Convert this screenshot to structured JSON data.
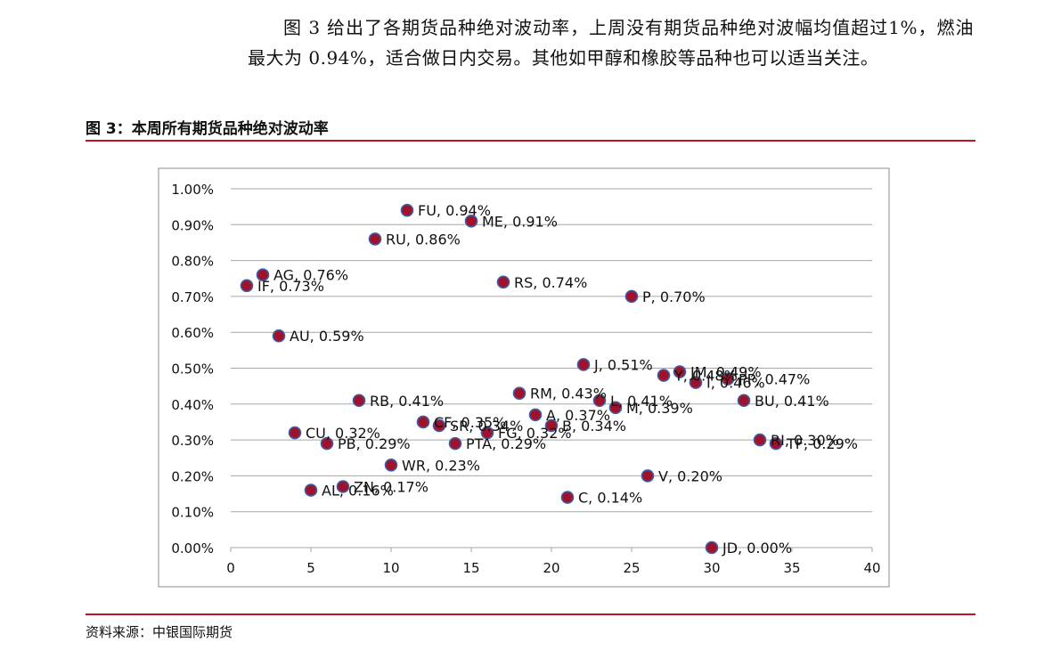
{
  "paragraph": "图 3 给出了各期货品种绝对波动率，上周没有期货品种绝对波幅均值超过1%，燃油最大为 0.94%，适合做日内交易。其他如甲醇和橡胶等品种也可以适当关注。",
  "figure_title": "图 3：本周所有期货品种绝对波动率",
  "source": "资料来源：中银国际期货",
  "colors": {
    "rule": "#c0142d",
    "marker_fill": "#a0112a",
    "marker_stroke": "#3d5fa8",
    "grid": "#a6a6a6"
  },
  "chart_data": {
    "type": "scatter",
    "title": "",
    "xlabel": "",
    "ylabel": "",
    "xlim": [
      0,
      40
    ],
    "ylim": [
      0,
      0.01
    ],
    "x_ticks": [
      0,
      5,
      10,
      15,
      20,
      25,
      30,
      35,
      40
    ],
    "y_ticks": [
      "0.00%",
      "0.10%",
      "0.20%",
      "0.30%",
      "0.40%",
      "0.50%",
      "0.60%",
      "0.70%",
      "0.80%",
      "0.90%",
      "1.00%"
    ],
    "grid": true,
    "points": [
      {
        "x": 1,
        "y": 0.0073,
        "label": "IF, 0.73%"
      },
      {
        "x": 2,
        "y": 0.0076,
        "label": "AG, 0.76%"
      },
      {
        "x": 3,
        "y": 0.0059,
        "label": "AU, 0.59%"
      },
      {
        "x": 4,
        "y": 0.0032,
        "label": "CU, 0.32%"
      },
      {
        "x": 5,
        "y": 0.0016,
        "label": "AL, 0.16%"
      },
      {
        "x": 6,
        "y": 0.0029,
        "label": "PB, 0.29%"
      },
      {
        "x": 7,
        "y": 0.0017,
        "label": "ZN, 0.17%"
      },
      {
        "x": 8,
        "y": 0.0041,
        "label": "RB, 0.41%"
      },
      {
        "x": 9,
        "y": 0.0086,
        "label": "RU, 0.86%"
      },
      {
        "x": 10,
        "y": 0.0023,
        "label": "WR, 0.23%"
      },
      {
        "x": 11,
        "y": 0.0094,
        "label": "FU, 0.94%"
      },
      {
        "x": 12,
        "y": 0.0035,
        "label": "CF, 0.35%"
      },
      {
        "x": 13,
        "y": 0.0034,
        "label": "SR, 0.34%"
      },
      {
        "x": 14,
        "y": 0.0029,
        "label": "PTA, 0.29%"
      },
      {
        "x": 15,
        "y": 0.0091,
        "label": "ME, 0.91%"
      },
      {
        "x": 16,
        "y": 0.0032,
        "label": "FG, 0.32%"
      },
      {
        "x": 17,
        "y": 0.0074,
        "label": "RS, 0.74%"
      },
      {
        "x": 18,
        "y": 0.0043,
        "label": "RM, 0.43%"
      },
      {
        "x": 19,
        "y": 0.0037,
        "label": "A, 0.37%"
      },
      {
        "x": 20,
        "y": 0.0034,
        "label": "B, 0.34%"
      },
      {
        "x": 21,
        "y": 0.0014,
        "label": "C, 0.14%"
      },
      {
        "x": 22,
        "y": 0.0051,
        "label": "J, 0.51%"
      },
      {
        "x": 23,
        "y": 0.0041,
        "label": "L, 0.41%"
      },
      {
        "x": 24,
        "y": 0.0039,
        "label": "M, 0.39%"
      },
      {
        "x": 25,
        "y": 0.007,
        "label": "P, 0.70%"
      },
      {
        "x": 26,
        "y": 0.002,
        "label": "V, 0.20%"
      },
      {
        "x": 27,
        "y": 0.0048,
        "label": "Y, 0.48%"
      },
      {
        "x": 28,
        "y": 0.0049,
        "label": "JM, 0.49%"
      },
      {
        "x": 29,
        "y": 0.0046,
        "label": "I, 0.46%"
      },
      {
        "x": 30,
        "y": 0.0,
        "label": "JD, 0.00%"
      },
      {
        "x": 31,
        "y": 0.0047,
        "label": "PP, 0.47%"
      },
      {
        "x": 32,
        "y": 0.0041,
        "label": "BU, 0.41%"
      },
      {
        "x": 33,
        "y": 0.003,
        "label": "RI, 0.30%"
      },
      {
        "x": 34,
        "y": 0.0029,
        "label": "TF, 0.29%"
      }
    ]
  }
}
